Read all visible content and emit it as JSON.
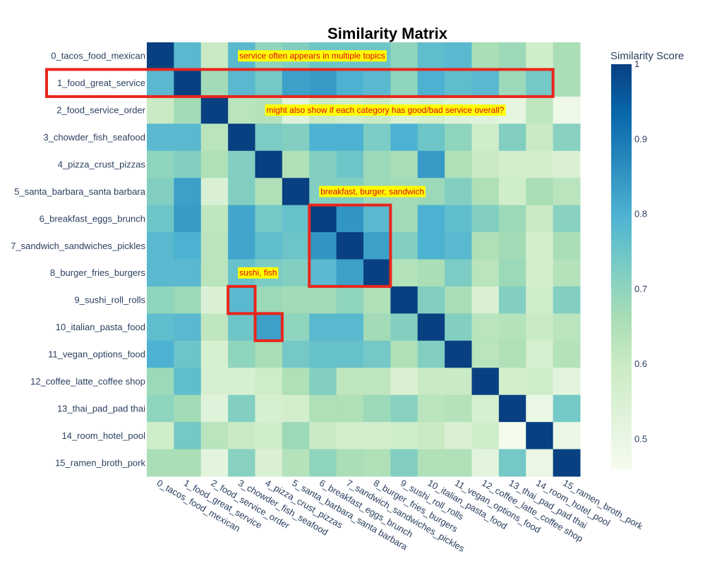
{
  "chart_data": {
    "type": "heatmap",
    "title": "Similarity Matrix",
    "labels": [
      "0_tacos_food_mexican",
      "1_food_great_service",
      "2_food_service_order",
      "3_chowder_fish_seafood",
      "4_pizza_crust_pizzas",
      "5_santa_barbara_santa barbara",
      "6_breakfast_eggs_brunch",
      "7_sandwich_sandwiches_pickles",
      "8_burger_fries_burgers",
      "9_sushi_roll_rolls",
      "10_italian_pasta_food",
      "11_vegan_options_food",
      "12_coffee_latte_coffee shop",
      "13_thai_pad_pad thai",
      "14_room_hotel_pool",
      "15_ramen_broth_pork"
    ],
    "values": [
      [
        1.0,
        0.78,
        0.6,
        0.78,
        0.7,
        0.72,
        0.75,
        0.75,
        0.75,
        0.7,
        0.77,
        0.78,
        0.66,
        0.68,
        0.58,
        0.66
      ],
      [
        0.78,
        1.0,
        0.67,
        0.78,
        0.74,
        0.83,
        0.84,
        0.8,
        0.78,
        0.7,
        0.8,
        0.77,
        0.78,
        0.68,
        0.74,
        0.66
      ],
      [
        0.6,
        0.67,
        1.0,
        0.63,
        0.64,
        0.53,
        0.6,
        0.58,
        0.6,
        0.55,
        0.57,
        0.54,
        0.53,
        0.51,
        0.62,
        0.49
      ],
      [
        0.78,
        0.78,
        0.63,
        1.0,
        0.73,
        0.72,
        0.8,
        0.8,
        0.73,
        0.8,
        0.75,
        0.7,
        0.58,
        0.72,
        0.6,
        0.71
      ],
      [
        0.7,
        0.72,
        0.65,
        0.72,
        1.0,
        0.65,
        0.72,
        0.75,
        0.68,
        0.66,
        0.84,
        0.65,
        0.6,
        0.57,
        0.57,
        0.55
      ],
      [
        0.72,
        0.83,
        0.55,
        0.72,
        0.65,
        1.0,
        0.72,
        0.72,
        0.68,
        0.67,
        0.68,
        0.72,
        0.65,
        0.58,
        0.66,
        0.63
      ],
      [
        0.75,
        0.84,
        0.62,
        0.82,
        0.74,
        0.76,
        1.0,
        0.85,
        0.78,
        0.67,
        0.8,
        0.77,
        0.72,
        0.68,
        0.6,
        0.71
      ],
      [
        0.78,
        0.8,
        0.63,
        0.82,
        0.77,
        0.75,
        0.85,
        1.0,
        0.83,
        0.72,
        0.8,
        0.78,
        0.65,
        0.67,
        0.57,
        0.66
      ],
      [
        0.78,
        0.78,
        0.63,
        0.76,
        0.73,
        0.72,
        0.78,
        0.83,
        1.0,
        0.64,
        0.66,
        0.73,
        0.63,
        0.68,
        0.57,
        0.64
      ],
      [
        0.7,
        0.68,
        0.55,
        0.78,
        0.68,
        0.67,
        0.67,
        0.7,
        0.65,
        1.0,
        0.72,
        0.66,
        0.55,
        0.72,
        0.58,
        0.72
      ],
      [
        0.77,
        0.78,
        0.62,
        0.75,
        0.83,
        0.7,
        0.78,
        0.78,
        0.67,
        0.72,
        1.0,
        0.72,
        0.63,
        0.64,
        0.6,
        0.63
      ],
      [
        0.8,
        0.75,
        0.56,
        0.7,
        0.66,
        0.74,
        0.76,
        0.76,
        0.74,
        0.65,
        0.72,
        1.0,
        0.63,
        0.65,
        0.56,
        0.64
      ],
      [
        0.68,
        0.77,
        0.56,
        0.56,
        0.59,
        0.65,
        0.72,
        0.62,
        0.62,
        0.55,
        0.6,
        0.6,
        1.0,
        0.57,
        0.58,
        0.52
      ],
      [
        0.7,
        0.67,
        0.53,
        0.72,
        0.56,
        0.57,
        0.65,
        0.65,
        0.68,
        0.71,
        0.63,
        0.64,
        0.56,
        1.0,
        0.5,
        0.74
      ],
      [
        0.58,
        0.74,
        0.63,
        0.6,
        0.58,
        0.68,
        0.6,
        0.57,
        0.57,
        0.58,
        0.6,
        0.55,
        0.58,
        0.47,
        1.0,
        0.5
      ],
      [
        0.66,
        0.66,
        0.52,
        0.71,
        0.55,
        0.64,
        0.7,
        0.66,
        0.65,
        0.72,
        0.65,
        0.65,
        0.52,
        0.74,
        0.5,
        1.0
      ]
    ],
    "zlim": [
      0.46,
      1.0
    ],
    "colorscale": "GnBu",
    "colorbar": {
      "title": "Similarity Score",
      "ticks": [
        0.5,
        0.6,
        0.7,
        0.8,
        0.9,
        1
      ]
    },
    "annotations": [
      {
        "text": "service often appears in multiple topics",
        "anchor_row": 0,
        "anchor_col": 3
      },
      {
        "text": "might also show if each category has good/bad service overall?",
        "anchor_row": 2,
        "anchor_col": 4
      },
      {
        "text": "breakfast, burger, sandwich",
        "anchor_row": 5,
        "anchor_col": 6
      },
      {
        "text": "sushi, fish",
        "anchor_row": 8,
        "anchor_col": 3
      }
    ],
    "highlights": [
      {
        "row_start": 1,
        "row_end": 1,
        "col_start": -1,
        "col_end": 14,
        "color": "#e8261c"
      },
      {
        "row_start": 6,
        "row_end": 8,
        "col_start": 6,
        "col_end": 8,
        "color": "#e8261c"
      },
      {
        "row_start": 9,
        "row_end": 9,
        "col_start": 3,
        "col_end": 3,
        "color": "#e8261c"
      },
      {
        "row_start": 10,
        "row_end": 10,
        "col_start": 4,
        "col_end": 4,
        "color": "#e8261c"
      }
    ],
    "annotation_bg": "#ffff00",
    "annotation_color": "#e0001a"
  }
}
